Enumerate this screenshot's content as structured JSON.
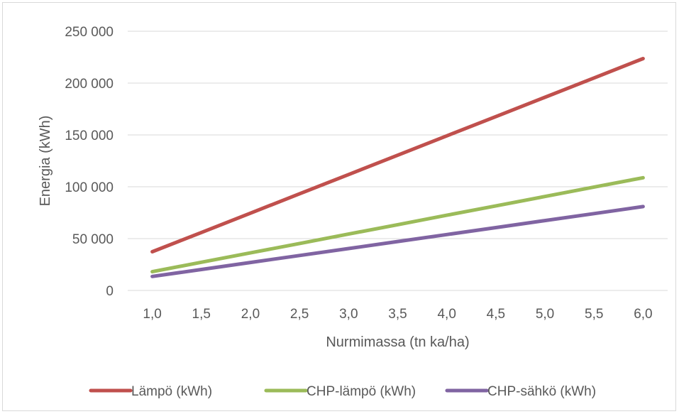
{
  "chart_data": {
    "type": "line",
    "title": "",
    "xlabel": "Nurmimassa (tn ka/ha)",
    "ylabel": "Energia (kWh)",
    "x": [
      1.0,
      1.5,
      2.0,
      2.5,
      3.0,
      3.5,
      4.0,
      4.5,
      5.0,
      5.5,
      6.0
    ],
    "x_tick_labels": [
      "1,0",
      "1,5",
      "2,0",
      "2,5",
      "3,0",
      "3,5",
      "4,0",
      "4,5",
      "5,0",
      "5,5",
      "6,0"
    ],
    "ylim": [
      0,
      250000
    ],
    "y_ticks": [
      0,
      50000,
      100000,
      150000,
      200000,
      250000
    ],
    "y_tick_labels": [
      "0",
      "50 000",
      "100 000",
      "150 000",
      "200 000",
      "250 000"
    ],
    "grid": true,
    "legend_position": "bottom",
    "series": [
      {
        "name": "Lämpö (kWh)",
        "color": "#c0504d",
        "values": [
          37300,
          55900,
          74500,
          93200,
          111800,
          130400,
          149100,
          167700,
          186300,
          204900,
          223600
        ]
      },
      {
        "name": "CHP-lämpö (kWh)",
        "color": "#9bbb59",
        "values": [
          18100,
          27200,
          36200,
          45300,
          54400,
          63400,
          72500,
          81600,
          90600,
          99700,
          108700
        ]
      },
      {
        "name": "CHP-sähkö (kWh)",
        "color": "#8064a2",
        "values": [
          13500,
          20200,
          27000,
          33700,
          40400,
          47200,
          53900,
          60600,
          67400,
          74100,
          80900
        ]
      }
    ]
  }
}
